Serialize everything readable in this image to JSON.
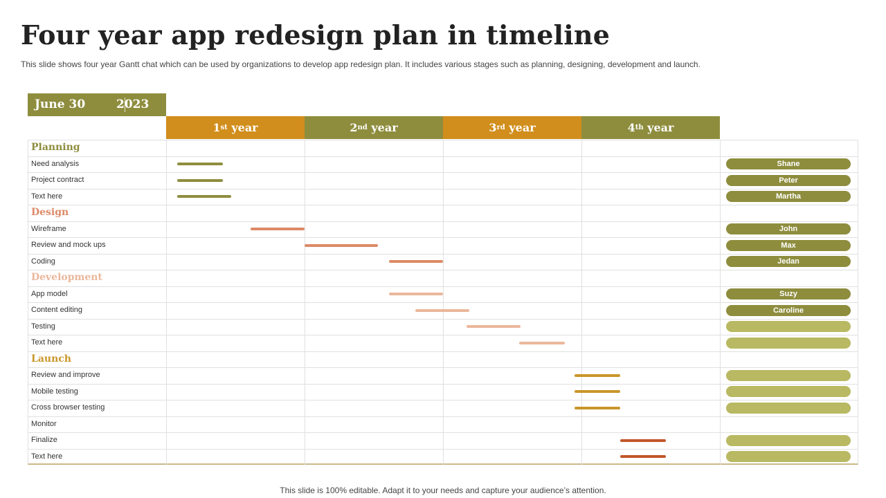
{
  "title": "Four year app redesign plan in timeline",
  "subtitle": "This slide shows four year Gantt chat which can be used by organizations to develop app redesign plan. It includes various stages such as planning, designing, development and launch.",
  "footer": "This slide is 100% editable. Adapt it to your needs and capture your audience’s attention.",
  "date": {
    "day": "June 30",
    "year": "2023"
  },
  "colors": {
    "olive": "#8e8d3e",
    "gold": "#d18e1c",
    "light_olive": "#b8b962"
  },
  "chart_data": {
    "type": "gantt",
    "periods": [
      {
        "num": "1",
        "sup": "st",
        "word": "year",
        "color": "#d18e1c"
      },
      {
        "num": "2",
        "sup": "nd",
        "word": "year",
        "color": "#8e8d3e"
      },
      {
        "num": "3",
        "sup": "rd",
        "word": "year",
        "color": "#d18e1c"
      },
      {
        "num": "4",
        "sup": "th",
        "word": "year",
        "color": "#8e8d3e"
      }
    ],
    "sections": [
      {
        "name": "Planning",
        "color": "#8e8d3e",
        "tasks": [
          {
            "label": "Need analysis",
            "start": 0.08,
            "end": 0.41,
            "bar_color": "#8e8d3e",
            "owner": "Shane",
            "owner_color": "#8e8d3e"
          },
          {
            "label": "Project contract",
            "start": 0.08,
            "end": 0.41,
            "bar_color": "#8e8d3e",
            "owner": "Peter",
            "owner_color": "#8e8d3e"
          },
          {
            "label": "Text here",
            "start": 0.08,
            "end": 0.47,
            "bar_color": "#8e8d3e",
            "owner": "Martha",
            "owner_color": "#8e8d3e"
          }
        ]
      },
      {
        "name": "Design",
        "color": "#dc8a66",
        "tasks": [
          {
            "label": "Wireframe",
            "start": 0.61,
            "end": 1.0,
            "bar_color": "#dc8a66",
            "owner": "John",
            "owner_color": "#8e8d3e"
          },
          {
            "label": "Review and mock ups",
            "start": 1.0,
            "end": 1.53,
            "bar_color": "#dc8a66",
            "owner": "Max",
            "owner_color": "#8e8d3e"
          },
          {
            "label": "Coding",
            "start": 1.61,
            "end": 2.0,
            "bar_color": "#dc8a66",
            "owner": "Jedan",
            "owner_color": "#8e8d3e"
          }
        ]
      },
      {
        "name": "Development",
        "color": "#ebb79b",
        "tasks": [
          {
            "label": "App model",
            "start": 1.61,
            "end": 2.0,
            "bar_color": "#ebb79b",
            "owner": "Suzy",
            "owner_color": "#8e8d3e"
          },
          {
            "label": "Content editing",
            "start": 1.8,
            "end": 2.19,
            "bar_color": "#ebb79b",
            "owner": "Caroline",
            "owner_color": "#8e8d3e"
          },
          {
            "label": "Testing",
            "start": 2.17,
            "end": 2.56,
            "bar_color": "#ebb79b",
            "owner": "",
            "owner_color": "#b8b962"
          },
          {
            "label": "Text here",
            "start": 2.55,
            "end": 2.88,
            "bar_color": "#ebb79b",
            "owner": "",
            "owner_color": "#b8b962"
          }
        ]
      },
      {
        "name": "Launch",
        "color": "#c9962a",
        "tasks": [
          {
            "label": "Review and improve",
            "start": 2.95,
            "end": 3.28,
            "bar_color": "#c9962a",
            "owner": "",
            "owner_color": "#b8b962"
          },
          {
            "label": "Mobile testing",
            "start": 2.95,
            "end": 3.28,
            "bar_color": "#c9962a",
            "owner": "",
            "owner_color": "#b8b962"
          },
          {
            "label": "Cross browser testing",
            "start": 2.95,
            "end": 3.28,
            "bar_color": "#c9962a",
            "owner": "",
            "owner_color": "#b8b962"
          },
          {
            "label": "Monitor"
          },
          {
            "label": "Finalize",
            "start": 3.28,
            "end": 3.61,
            "bar_color": "#c2562a",
            "owner": "",
            "owner_color": "#b8b962"
          },
          {
            "label": "Text here",
            "start": 3.28,
            "end": 3.61,
            "bar_color": "#c2562a",
            "owner": "",
            "owner_color": "#b8b962"
          }
        ]
      }
    ]
  }
}
